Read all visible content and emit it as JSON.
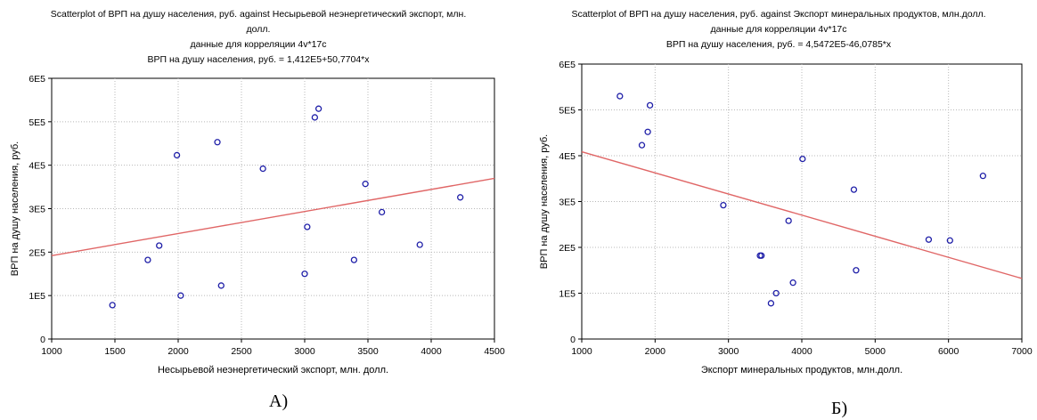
{
  "chart_data": [
    {
      "type": "scatter",
      "title": "Scatterplot of ВРП на душу населения, руб. against Несырьевой неэнергетический экспорт, млн. долл.",
      "title_lines": [
        "Scatterplot of ВРП на душу населения, руб. against Несырьевой неэнергетический экспорт, млн.",
        "долл."
      ],
      "subtitle": "данные для корреляции 4v*17c",
      "equation": "ВРП на душу населения, руб. = 1,412E5+50,7704*x",
      "xlabel": "Несырьевой неэнергетический экспорт, млн. долл.",
      "ylabel": "ВРП на душу населения, руб.",
      "xlim": [
        1000,
        4500
      ],
      "ylim": [
        0,
        600000
      ],
      "x_ticks": [
        1000,
        1500,
        2000,
        2500,
        3000,
        3500,
        4000,
        4500
      ],
      "x_tick_labels": [
        "1000",
        "1500",
        "2000",
        "2500",
        "3000",
        "3500",
        "4000",
        "4500"
      ],
      "y_ticks": [
        0,
        100000,
        200000,
        300000,
        400000,
        500000,
        600000
      ],
      "y_tick_labels": [
        "0",
        "1E5",
        "2E5",
        "3E5",
        "4E5",
        "5E5",
        "6E5"
      ],
      "grid": true,
      "points": [
        {
          "x": 1480,
          "y": 78000
        },
        {
          "x": 1760,
          "y": 182000
        },
        {
          "x": 1850,
          "y": 215000
        },
        {
          "x": 1990,
          "y": 423000
        },
        {
          "x": 2020,
          "y": 100000
        },
        {
          "x": 2310,
          "y": 453000
        },
        {
          "x": 2340,
          "y": 123000
        },
        {
          "x": 2670,
          "y": 392000
        },
        {
          "x": 3000,
          "y": 150000
        },
        {
          "x": 3020,
          "y": 258000
        },
        {
          "x": 3080,
          "y": 510000
        },
        {
          "x": 3110,
          "y": 530000
        },
        {
          "x": 3390,
          "y": 182000
        },
        {
          "x": 3480,
          "y": 357000
        },
        {
          "x": 3610,
          "y": 292000
        },
        {
          "x": 3910,
          "y": 217000
        },
        {
          "x": 4230,
          "y": 326000
        }
      ],
      "fit": {
        "intercept": 141200,
        "slope": 50.7704
      },
      "point_color": "#1f1fa8",
      "fit_color": "#e06666",
      "caption": "A)"
    },
    {
      "type": "scatter",
      "title": "Scatterplot of ВРП на душу населения, руб. against Экспорт минеральных продуктов, млн.долл.",
      "title_lines": [
        "Scatterplot of ВРП на душу населения, руб. against Экспорт минеральных продуктов, млн.долл."
      ],
      "subtitle": "данные для корреляции 4v*17c",
      "equation": "ВРП на душу населения, руб. = 4,5472E5-46,0785*x",
      "xlabel": "Экспорт минеральных продуктов, млн.долл.",
      "ylabel": "ВРП на душу населения, руб.",
      "xlim": [
        1000,
        7000
      ],
      "ylim": [
        0,
        600000
      ],
      "x_ticks": [
        1000,
        2000,
        3000,
        4000,
        5000,
        6000,
        7000
      ],
      "x_tick_labels": [
        "1000",
        "2000",
        "3000",
        "4000",
        "5000",
        "6000",
        "7000"
      ],
      "y_ticks": [
        0,
        100000,
        200000,
        300000,
        400000,
        500000,
        600000
      ],
      "y_tick_labels": [
        "0",
        "1E5",
        "2E5",
        "3E5",
        "4E5",
        "5E5",
        "6E5"
      ],
      "grid": true,
      "points": [
        {
          "x": 1520,
          "y": 530000
        },
        {
          "x": 1820,
          "y": 423000
        },
        {
          "x": 1900,
          "y": 452000
        },
        {
          "x": 1930,
          "y": 510000
        },
        {
          "x": 2930,
          "y": 292000
        },
        {
          "x": 3430,
          "y": 182000
        },
        {
          "x": 3450,
          "y": 182000
        },
        {
          "x": 3580,
          "y": 78000
        },
        {
          "x": 3650,
          "y": 100000
        },
        {
          "x": 3820,
          "y": 258000
        },
        {
          "x": 3880,
          "y": 123000
        },
        {
          "x": 4010,
          "y": 393000
        },
        {
          "x": 4710,
          "y": 326000
        },
        {
          "x": 4740,
          "y": 150000
        },
        {
          "x": 5730,
          "y": 217000
        },
        {
          "x": 6020,
          "y": 215000
        },
        {
          "x": 6470,
          "y": 356000
        }
      ],
      "fit": {
        "intercept": 454720,
        "slope": -46.0785
      },
      "point_color": "#1f1fa8",
      "fit_color": "#e06666",
      "caption": "Б)"
    }
  ]
}
